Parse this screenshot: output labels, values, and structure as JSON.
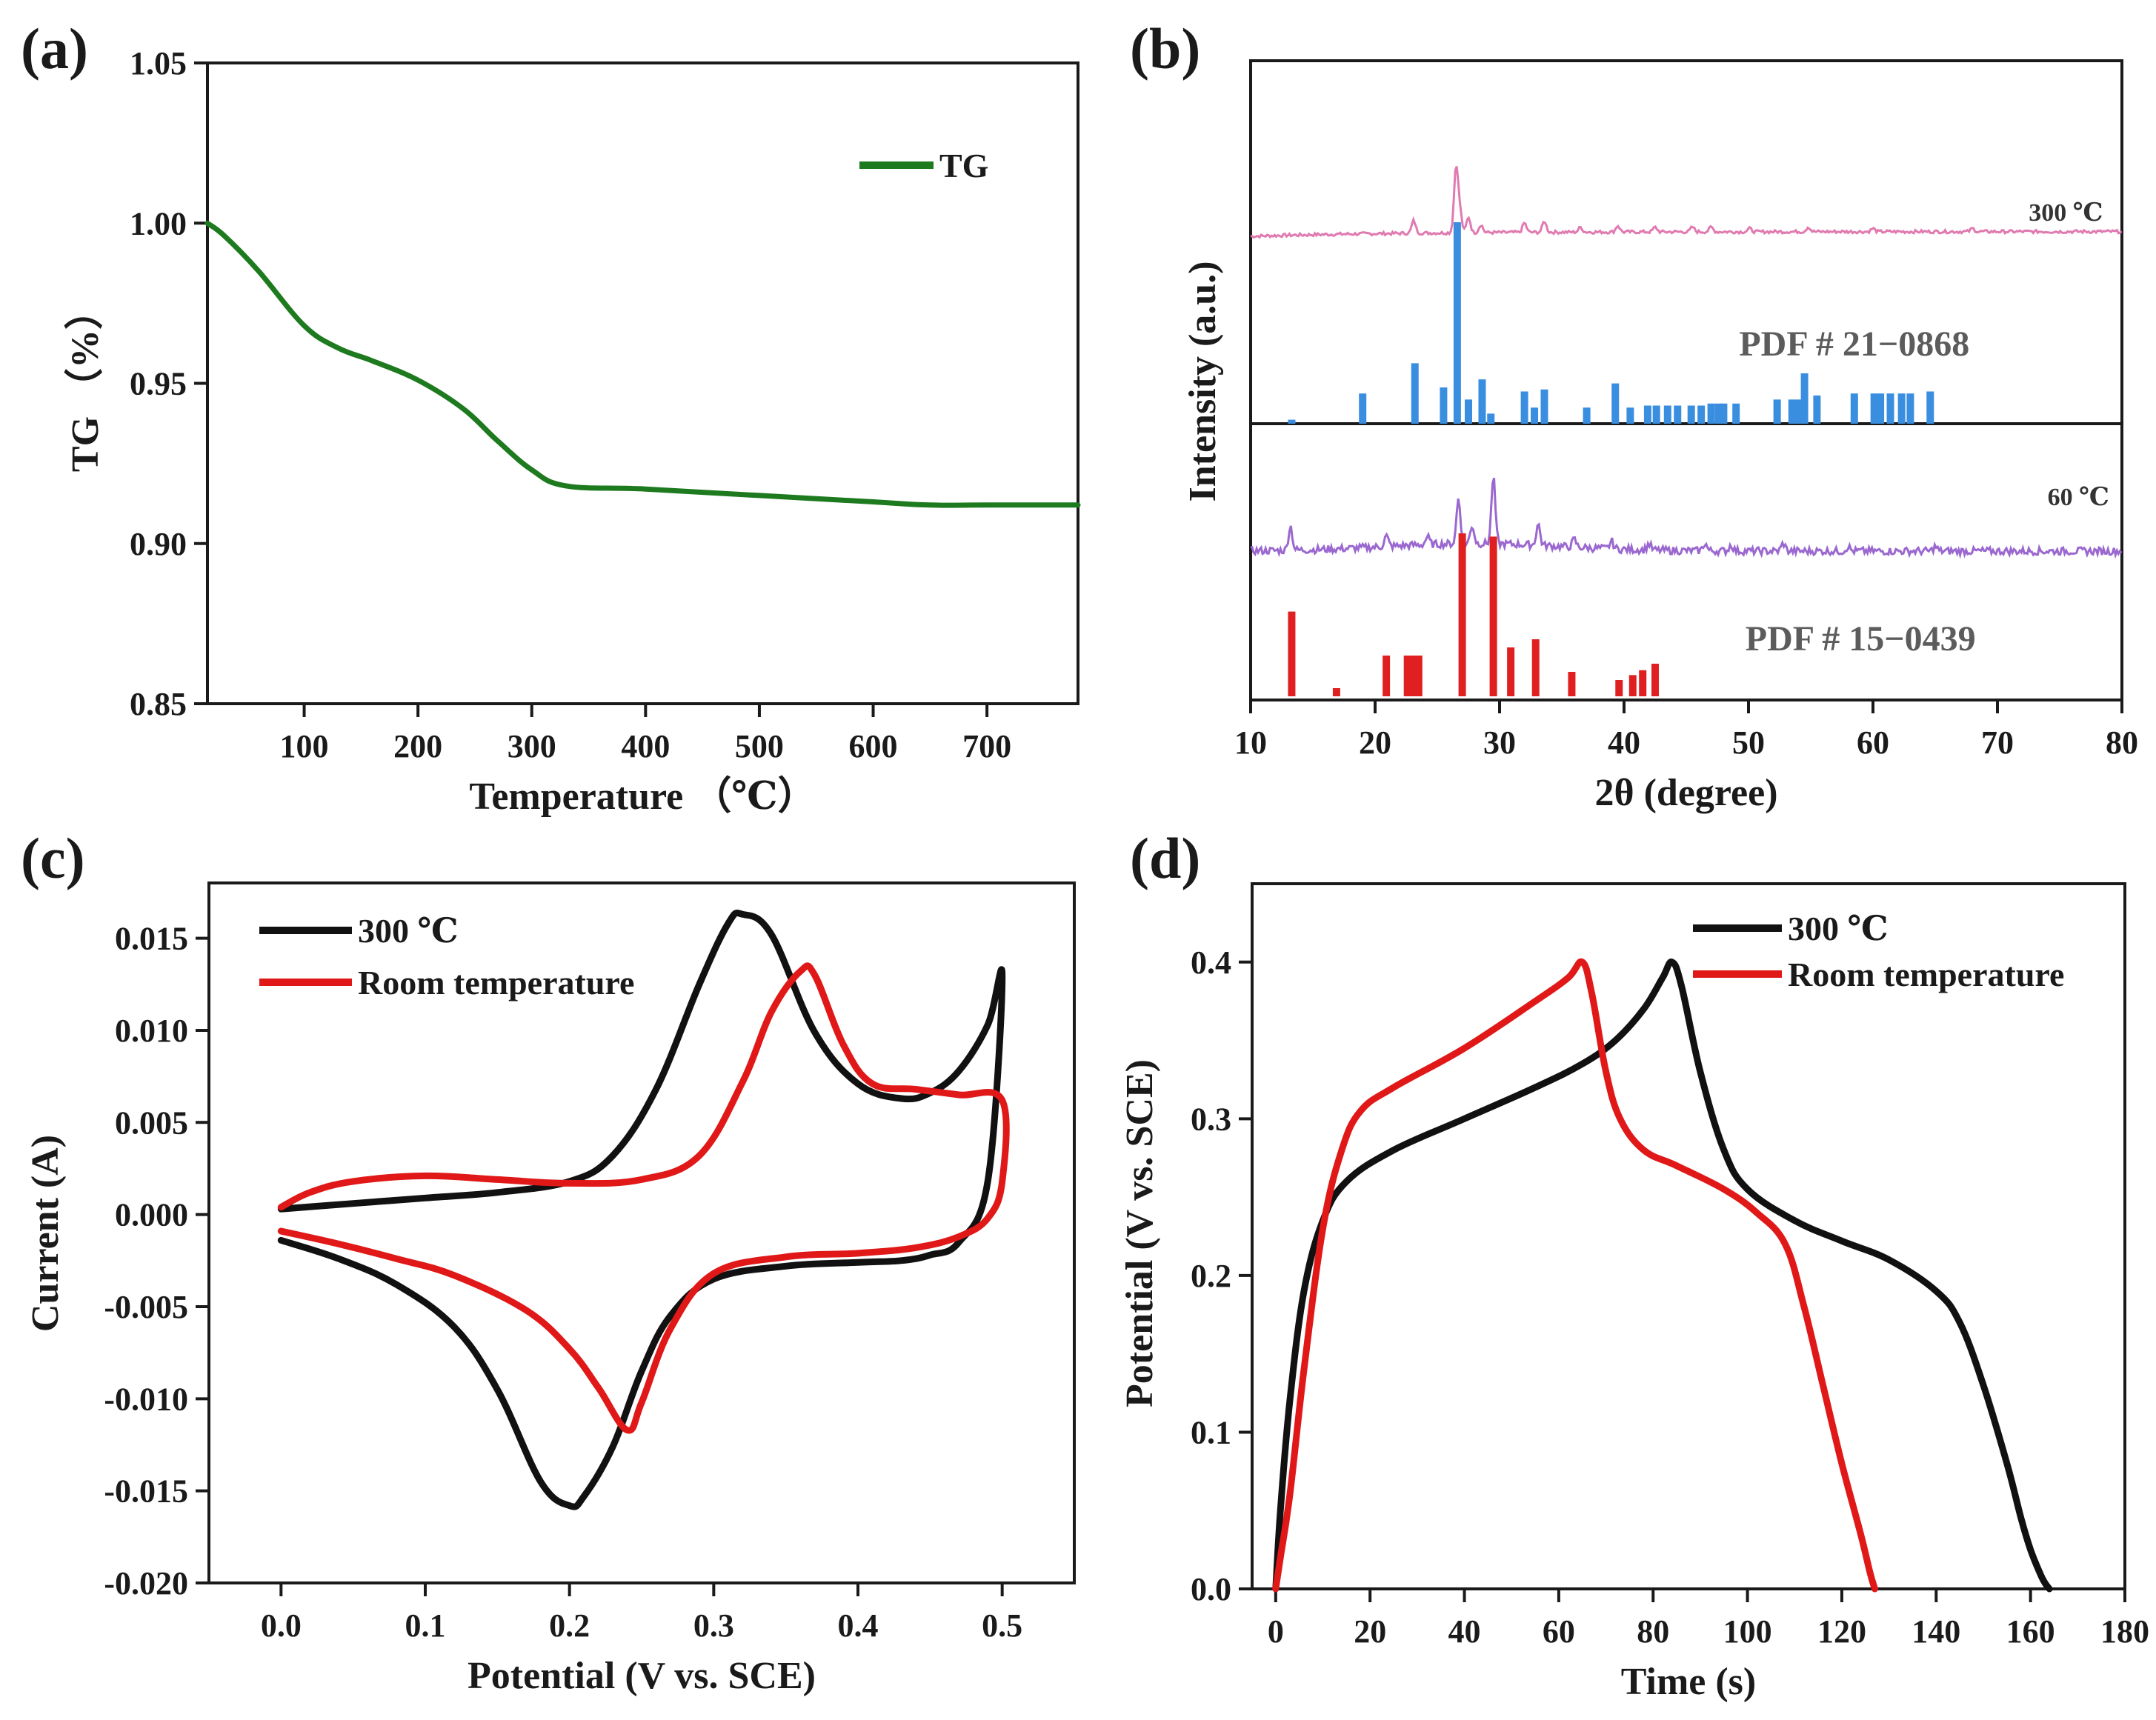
{
  "chart_data": [
    {
      "id": "a",
      "type": "line",
      "panel_label": "(a)",
      "title": "",
      "xlabel": "Temperature （℃）",
      "ylabel": "TG （%）",
      "xlim": [
        15,
        780
      ],
      "ylim": [
        0.85,
        1.05
      ],
      "xticks": [
        100,
        200,
        300,
        400,
        500,
        600,
        700
      ],
      "xtick_labels": [
        "100",
        "200",
        "300",
        "400",
        "500",
        "600",
        "700"
      ],
      "yticks": [
        0.85,
        0.9,
        0.95,
        1.0,
        1.05
      ],
      "ytick_labels": [
        "0.85",
        "0.90",
        "0.95",
        "1.00",
        "1.05"
      ],
      "legend": "top-right",
      "series": [
        {
          "name": "TG",
          "color": "#1e7a1e",
          "x": [
            15,
            30,
            60,
            100,
            130,
            160,
            200,
            240,
            270,
            300,
            330,
            400,
            500,
            600,
            650,
            700,
            780
          ],
          "y": [
            1.0,
            0.996,
            0.985,
            0.968,
            0.961,
            0.957,
            0.951,
            0.942,
            0.932,
            0.923,
            0.918,
            0.917,
            0.915,
            0.913,
            0.912,
            0.912,
            0.912
          ]
        }
      ]
    },
    {
      "id": "b",
      "type": "line",
      "panel_label": "(b)",
      "title": "",
      "xlabel": "2θ (degree)",
      "ylabel": "Intensity (a.u.)",
      "xlim": [
        10,
        80
      ],
      "xticks": [
        10,
        20,
        30,
        40,
        50,
        60,
        70,
        80
      ],
      "xtick_labels": [
        "10",
        "20",
        "30",
        "40",
        "50",
        "60",
        "70",
        "80"
      ],
      "annotations": [
        {
          "text": "300 ℃",
          "x": 75.5,
          "color": "#333333"
        },
        {
          "text": "PDF # 21−0868",
          "x": 58.5,
          "color": "#5c5c5c"
        },
        {
          "text": "60 ℃",
          "x": 76.5,
          "color": "#333333"
        },
        {
          "text": "PDF # 15−0439",
          "x": 59.0,
          "color": "#5c5c5c"
        }
      ],
      "patterns": [
        {
          "name": "300 ℃",
          "color": "#e07ab0",
          "baseline": 0.25,
          "peaks": [
            [
              23.1,
              0.08
            ],
            [
              26.5,
              0.42
            ],
            [
              26.8,
              0.14
            ],
            [
              27.5,
              0.1
            ],
            [
              28.5,
              0.05
            ],
            [
              32.0,
              0.06
            ],
            [
              33.6,
              0.07
            ],
            [
              36.5,
              0.03
            ],
            [
              39.5,
              0.04
            ],
            [
              42.5,
              0.03
            ],
            [
              45.5,
              0.03
            ],
            [
              47.0,
              0.03
            ],
            [
              50.1,
              0.02
            ],
            [
              54.8,
              0.03
            ],
            [
              60.0,
              0.02
            ],
            [
              68.0,
              0.02
            ]
          ]
        },
        {
          "name": "PDF # 21-0868",
          "color": "#3a8ee0",
          "sticks": [
            [
              13.3,
              0.02
            ],
            [
              19.0,
              0.15
            ],
            [
              23.2,
              0.3
            ],
            [
              25.5,
              0.18
            ],
            [
              26.6,
              1.0
            ],
            [
              27.5,
              0.12
            ],
            [
              28.6,
              0.22
            ],
            [
              29.3,
              0.05
            ],
            [
              32.0,
              0.16
            ],
            [
              32.8,
              0.08
            ],
            [
              33.6,
              0.17
            ],
            [
              37.0,
              0.08
            ],
            [
              39.3,
              0.2
            ],
            [
              40.5,
              0.08
            ],
            [
              41.9,
              0.09
            ],
            [
              42.6,
              0.09
            ],
            [
              43.5,
              0.09
            ],
            [
              44.3,
              0.09
            ],
            [
              45.4,
              0.09
            ],
            [
              46.2,
              0.09
            ],
            [
              47.0,
              0.1
            ],
            [
              47.6,
              0.1
            ],
            [
              48.0,
              0.1
            ],
            [
              49.0,
              0.1
            ],
            [
              52.3,
              0.12
            ],
            [
              53.5,
              0.12
            ],
            [
              54.0,
              0.12
            ],
            [
              54.5,
              0.25
            ],
            [
              55.5,
              0.14
            ],
            [
              58.5,
              0.15
            ],
            [
              60.1,
              0.15
            ],
            [
              60.6,
              0.15
            ],
            [
              61.4,
              0.15
            ],
            [
              62.3,
              0.15
            ],
            [
              63.0,
              0.15
            ],
            [
              64.6,
              0.16
            ]
          ]
        },
        {
          "name": "60 ℃",
          "color": "#9b68d0",
          "baseline": 0.2,
          "peaks": [
            [
              13.2,
              0.16
            ],
            [
              20.9,
              0.07
            ],
            [
              24.2,
              0.05
            ],
            [
              26.7,
              0.3
            ],
            [
              27.8,
              0.12
            ],
            [
              29.5,
              0.44
            ],
            [
              33.1,
              0.14
            ],
            [
              36.0,
              0.05
            ],
            [
              39.0,
              0.05
            ],
            [
              42.0,
              0.04
            ],
            [
              46.5,
              0.05
            ],
            [
              48.6,
              0.04
            ],
            [
              52.8,
              0.05
            ],
            [
              58.0,
              0.03
            ],
            [
              65.0,
              0.03
            ]
          ]
        },
        {
          "name": "PDF # 15-0439",
          "color": "#e02020",
          "sticks": [
            [
              13.3,
              0.52
            ],
            [
              16.9,
              0.05
            ],
            [
              20.9,
              0.25
            ],
            [
              22.6,
              0.25
            ],
            [
              23.1,
              0.25
            ],
            [
              23.5,
              0.25
            ],
            [
              27.0,
              1.0
            ],
            [
              29.5,
              0.98
            ],
            [
              30.9,
              0.3
            ],
            [
              32.9,
              0.35
            ],
            [
              35.8,
              0.15
            ],
            [
              39.6,
              0.1
            ],
            [
              40.7,
              0.13
            ],
            [
              41.5,
              0.16
            ],
            [
              42.5,
              0.2
            ]
          ]
        }
      ]
    },
    {
      "id": "c",
      "type": "line",
      "panel_label": "(c)",
      "title": "",
      "xlabel": "Potential (V vs. SCE)",
      "ylabel": "Current (A)",
      "xlim": [
        -0.05,
        0.55
      ],
      "ylim": [
        -0.02,
        0.018
      ],
      "xticks": [
        0.0,
        0.1,
        0.2,
        0.3,
        0.4,
        0.5
      ],
      "xtick_labels": [
        "0.0",
        "0.1",
        "0.2",
        "0.3",
        "0.4",
        "0.5"
      ],
      "yticks": [
        0.015,
        0.01,
        0.005,
        0.0,
        -0.005,
        -0.01,
        -0.015,
        -0.02
      ],
      "ytick_labels": [
        "0.015",
        "0.010",
        "0.005",
        "0.000",
        "-0.005",
        "-0.010",
        "-0.015",
        "-0.020"
      ],
      "legend": "top-left",
      "series": [
        {
          "name": "300 ℃",
          "color": "#111111",
          "x": [
            0.0,
            0.05,
            0.1,
            0.15,
            0.2,
            0.23,
            0.26,
            0.29,
            0.31,
            0.32,
            0.34,
            0.37,
            0.4,
            0.43,
            0.45,
            0.47,
            0.49,
            0.5,
            0.49,
            0.47,
            0.45,
            0.43,
            0.4,
            0.35,
            0.3,
            0.27,
            0.25,
            0.23,
            0.21,
            0.2,
            0.18,
            0.15,
            0.12,
            0.08,
            0.04,
            0.0
          ],
          "y": [
            0.0003,
            0.0006,
            0.0009,
            0.0012,
            0.0018,
            0.0032,
            0.0068,
            0.0125,
            0.0158,
            0.0163,
            0.0152,
            0.0099,
            0.0071,
            0.0063,
            0.0066,
            0.0078,
            0.0103,
            0.0129,
            0.0018,
            -0.0015,
            -0.0022,
            -0.0025,
            -0.0026,
            -0.0028,
            -0.0035,
            -0.0055,
            -0.0085,
            -0.0126,
            -0.0153,
            -0.0158,
            -0.0145,
            -0.0095,
            -0.0061,
            -0.0038,
            -0.0024,
            -0.0014
          ]
        },
        {
          "name": "Room temperature",
          "color": "#e01818",
          "x": [
            0.0,
            0.02,
            0.05,
            0.1,
            0.15,
            0.2,
            0.25,
            0.29,
            0.32,
            0.34,
            0.36,
            0.37,
            0.39,
            0.41,
            0.44,
            0.47,
            0.5,
            0.5,
            0.49,
            0.47,
            0.44,
            0.4,
            0.35,
            0.3,
            0.27,
            0.25,
            0.24,
            0.22,
            0.2,
            0.17,
            0.12,
            0.08,
            0.04,
            0.0
          ],
          "y": [
            0.0004,
            0.0012,
            0.0018,
            0.0021,
            0.0019,
            0.0017,
            0.0019,
            0.0032,
            0.0072,
            0.011,
            0.0132,
            0.013,
            0.0092,
            0.0071,
            0.0068,
            0.0065,
            0.0062,
            0.0018,
            -0.0002,
            -0.0012,
            -0.0018,
            -0.0021,
            -0.0023,
            -0.0032,
            -0.0062,
            -0.0102,
            -0.0117,
            -0.0094,
            -0.0073,
            -0.0052,
            -0.0033,
            -0.0024,
            -0.0016,
            -0.0009
          ]
        }
      ]
    },
    {
      "id": "d",
      "type": "line",
      "panel_label": "(d)",
      "title": "",
      "xlabel": "Time (s)",
      "ylabel": "Potential (V vs. SCE)",
      "xlim": [
        -5,
        180
      ],
      "ylim": [
        0.0,
        0.45
      ],
      "xticks": [
        0,
        20,
        40,
        60,
        80,
        100,
        120,
        140,
        160,
        180
      ],
      "xtick_labels": [
        "0",
        "20",
        "40",
        "60",
        "80",
        "100",
        "120",
        "140",
        "160",
        "180"
      ],
      "yticks": [
        0.0,
        0.1,
        0.2,
        0.3,
        0.4
      ],
      "ytick_labels": [
        "0.0",
        "0.1",
        "0.2",
        "0.3",
        "0.4"
      ],
      "legend": "top-right",
      "series": [
        {
          "name": "300 ℃",
          "color": "#111111",
          "x": [
            0,
            1,
            3,
            6,
            10,
            15,
            25,
            40,
            55,
            65,
            72,
            78,
            82,
            84,
            86,
            90,
            95,
            100,
            110,
            120,
            130,
            140,
            145,
            150,
            155,
            158,
            160,
            162,
            163,
            164
          ],
          "y": [
            0.0,
            0.05,
            0.12,
            0.19,
            0.235,
            0.26,
            0.28,
            0.3,
            0.32,
            0.335,
            0.35,
            0.37,
            0.39,
            0.4,
            0.385,
            0.33,
            0.28,
            0.255,
            0.235,
            0.222,
            0.21,
            0.19,
            0.17,
            0.13,
            0.08,
            0.045,
            0.025,
            0.01,
            0.004,
            0.0
          ]
        },
        {
          "name": "Room temperature",
          "color": "#e01818",
          "x": [
            0,
            1,
            3,
            6,
            10,
            14,
            18,
            25,
            40,
            55,
            62,
            65,
            67,
            70,
            73,
            78,
            85,
            95,
            102,
            108,
            112,
            116,
            120,
            124,
            126,
            127
          ],
          "y": [
            0.0,
            0.02,
            0.06,
            0.14,
            0.23,
            0.28,
            0.305,
            0.32,
            0.345,
            0.375,
            0.39,
            0.4,
            0.38,
            0.33,
            0.3,
            0.28,
            0.27,
            0.255,
            0.24,
            0.22,
            0.18,
            0.13,
            0.08,
            0.035,
            0.01,
            0.0
          ]
        }
      ]
    }
  ]
}
